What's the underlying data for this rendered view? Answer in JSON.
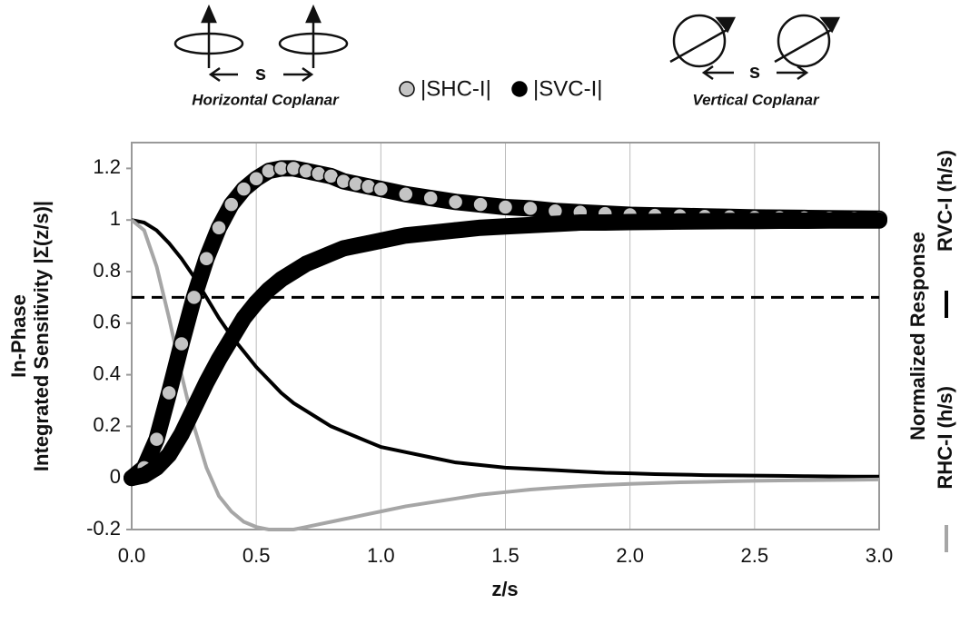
{
  "chart_data": {
    "type": "line",
    "xlabel": "z/s",
    "ylabel": [
      "In-Phase",
      "Integrated Sensitivity |Σ(z/s)|"
    ],
    "y2label": "Normalized Response",
    "annotations": [
      "Horizontal Coplanar",
      "Vertical Coplanar",
      "s",
      "s"
    ],
    "reference_line": {
      "value": 0.7,
      "color": "#000",
      "style": "dashed"
    },
    "xlim": [
      0,
      3
    ],
    "ylim": [
      -0.2,
      1.3
    ],
    "xticks": [
      {
        "value": 0,
        "label": "0.0"
      },
      {
        "value": 0.5,
        "label": "0.5"
      },
      {
        "value": 1,
        "label": "1.0"
      },
      {
        "value": 1.5,
        "label": "1.5"
      },
      {
        "value": 2,
        "label": "2.0"
      },
      {
        "value": 2.5,
        "label": "2.5"
      },
      {
        "value": 3,
        "label": "3.0"
      }
    ],
    "yticks": [
      -0.2,
      0,
      0.2,
      0.4,
      0.6,
      0.8,
      1,
      1.2
    ],
    "grid": "x",
    "x": [
      0,
      0.05,
      0.1,
      0.15,
      0.2,
      0.25,
      0.3,
      0.35,
      0.4,
      0.45,
      0.5,
      0.55,
      0.6,
      0.65,
      0.7,
      0.75,
      0.8,
      0.85,
      0.9,
      0.95,
      1.0,
      1.1,
      1.2,
      1.3,
      1.4,
      1.5,
      1.6,
      1.7,
      1.8,
      1.9,
      2.0,
      2.1,
      2.2,
      2.3,
      2.4,
      2.5,
      2.6,
      2.7,
      2.8,
      2.9,
      3.0
    ],
    "series": [
      {
        "name": "|SHC-I|",
        "type": "scatter",
        "color": "#c4c4c4",
        "values": [
          0,
          0.04,
          0.15,
          0.33,
          0.52,
          0.7,
          0.85,
          0.97,
          1.06,
          1.12,
          1.16,
          1.19,
          1.2,
          1.2,
          1.19,
          1.18,
          1.17,
          1.15,
          1.14,
          1.13,
          1.12,
          1.1,
          1.085,
          1.07,
          1.06,
          1.05,
          1.045,
          1.035,
          1.03,
          1.025,
          1.02,
          1.018,
          1.016,
          1.014,
          1.012,
          1.01,
          1.009,
          1.008,
          1.007,
          1.006,
          1.005
        ]
      },
      {
        "name": "|SVC-I|",
        "type": "scatter",
        "color": "#000000",
        "values": [
          0,
          0.01,
          0.04,
          0.09,
          0.17,
          0.27,
          0.37,
          0.46,
          0.54,
          0.62,
          0.68,
          0.73,
          0.77,
          0.8,
          0.83,
          0.85,
          0.87,
          0.89,
          0.9,
          0.91,
          0.92,
          0.94,
          0.95,
          0.96,
          0.97,
          0.975,
          0.98,
          0.985,
          0.99,
          0.99,
          0.992,
          0.993,
          0.994,
          0.995,
          0.996,
          0.996,
          0.997,
          0.997,
          0.998,
          0.998,
          0.998
        ]
      },
      {
        "name": "RVC-I (h/s)",
        "type": "line",
        "color": "#000000",
        "values": [
          1,
          0.99,
          0.96,
          0.91,
          0.85,
          0.78,
          0.7,
          0.62,
          0.55,
          0.49,
          0.43,
          0.38,
          0.33,
          0.29,
          0.26,
          0.23,
          0.2,
          0.18,
          0.16,
          0.14,
          0.12,
          0.1,
          0.08,
          0.06,
          0.05,
          0.04,
          0.035,
          0.03,
          0.025,
          0.02,
          0.018,
          0.015,
          0.013,
          0.011,
          0.01,
          0.009,
          0.008,
          0.007,
          0.006,
          0.005,
          0.005
        ]
      },
      {
        "name": "RHC-I (h/s)",
        "type": "line",
        "color": "#a6a6a6",
        "values": [
          1,
          0.96,
          0.82,
          0.62,
          0.4,
          0.2,
          0.04,
          -0.07,
          -0.13,
          -0.17,
          -0.19,
          -0.2,
          -0.2,
          -0.2,
          -0.19,
          -0.18,
          -0.17,
          -0.16,
          -0.15,
          -0.14,
          -0.13,
          -0.11,
          -0.095,
          -0.08,
          -0.065,
          -0.055,
          -0.045,
          -0.038,
          -0.032,
          -0.027,
          -0.023,
          -0.02,
          -0.017,
          -0.015,
          -0.013,
          -0.011,
          -0.01,
          -0.009,
          -0.008,
          -0.007,
          -0.006
        ]
      }
    ]
  }
}
